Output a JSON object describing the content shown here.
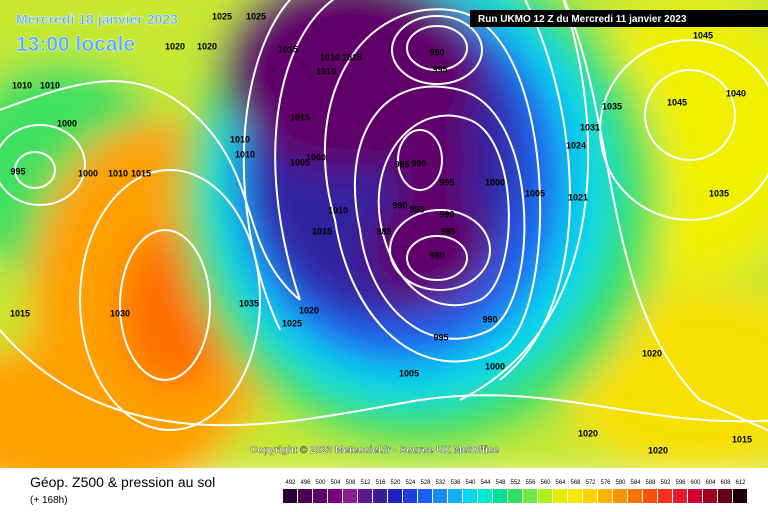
{
  "header": {
    "date": "Mercredi 18 janvier 2023",
    "time": "13:00 locale",
    "run": "Run UKMO 12 Z du Mercredi 11 janvier 2023"
  },
  "copyright": "Copyright © 2023 Meteociel.fr - Source UK MetOffice",
  "legend": {
    "title": "Géop. Z500 & pression au sol",
    "subtitle": "(+ 168h)",
    "values": [
      492,
      496,
      500,
      504,
      508,
      512,
      516,
      520,
      524,
      528,
      532,
      536,
      540,
      544,
      548,
      552,
      556,
      560,
      564,
      568,
      572,
      576,
      580,
      584,
      588,
      592,
      596,
      600,
      604,
      608,
      612
    ],
    "colors": [
      "#2d0032",
      "#4a004f",
      "#62006a",
      "#7a0080",
      "#8c1a93",
      "#5a1a8e",
      "#3a1a9e",
      "#2020c0",
      "#1e3ee0",
      "#1a60f0",
      "#1a88f5",
      "#10b0f5",
      "#00d8f0",
      "#00e8c8",
      "#00e090",
      "#30e060",
      "#70e840",
      "#b0f020",
      "#e0f000",
      "#f8e800",
      "#ffd000",
      "#ffb000",
      "#ff9000",
      "#ff7000",
      "#ff5000",
      "#f83020",
      "#e81830",
      "#d00030",
      "#a00020",
      "#600010",
      "#200000"
    ]
  },
  "isobar_labels": [
    "1025",
    "1025",
    "1020",
    "1020",
    "1010",
    "1010",
    "1000",
    "995",
    "1000",
    "1010",
    "1015",
    "1015",
    "1010",
    "1015",
    "1015",
    "990",
    "995",
    "1015",
    "1010",
    "1010",
    "1005",
    "1000",
    "985",
    "990",
    "995",
    "1000",
    "1005",
    "1035",
    "1031",
    "1024",
    "1021",
    "1045",
    "1040",
    "1035",
    "1045",
    "990",
    "995",
    "990",
    "985",
    "985",
    "980",
    "1010",
    "1015",
    "1035",
    "1030",
    "1015",
    "1020",
    "1025",
    "990",
    "995",
    "1000",
    "1005",
    "1020",
    "1020",
    "1020",
    "1015"
  ]
}
